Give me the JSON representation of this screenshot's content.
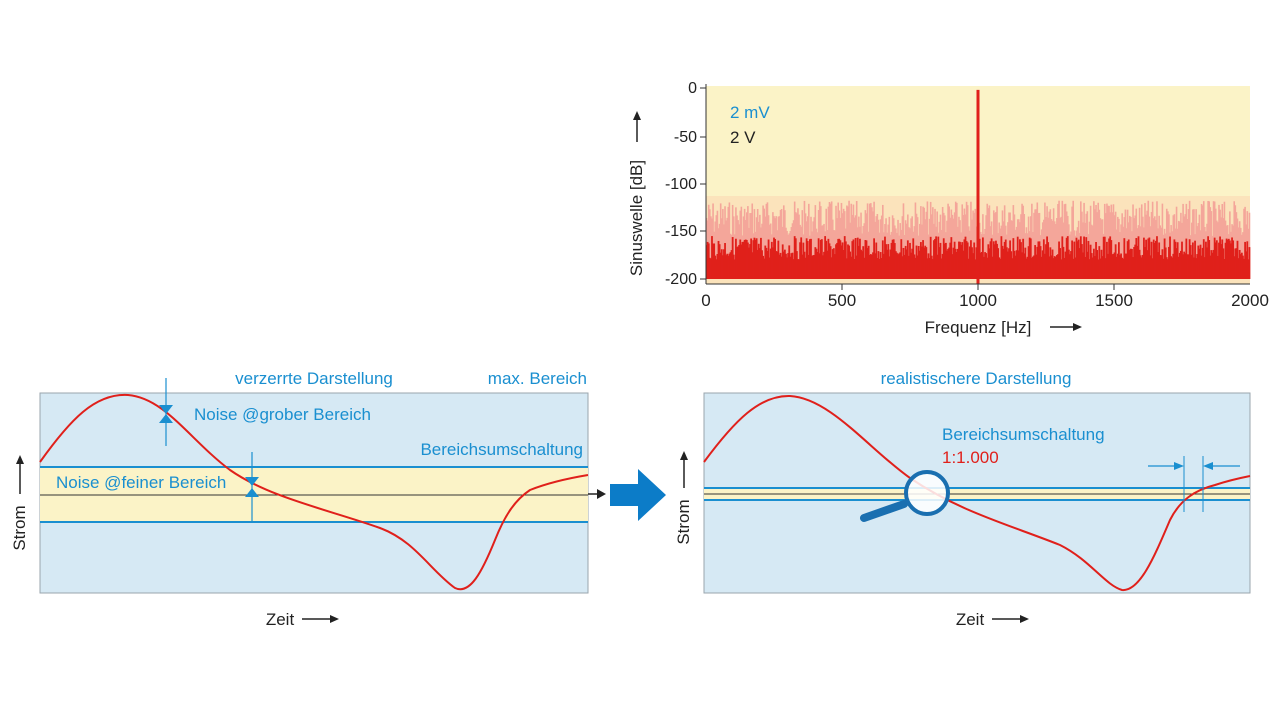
{
  "spectrum": {
    "ylabel": "Sinuswelle [dB]",
    "xlabel": "Frequenz [Hz]",
    "legend_fine": "2 mV",
    "legend_coarse": "2 V",
    "x_ticks": [
      "0",
      "500",
      "1000",
      "1500",
      "2000"
    ],
    "y_ticks": [
      "0",
      "-50",
      "-100",
      "-150",
      "-200"
    ],
    "colors": {
      "fine": "#e0201b",
      "coarse": "#f4a69a",
      "plot_bg": "#fbf3c7",
      "band_bg": "#fbe3bb"
    }
  },
  "chart_data": {
    "type": "bar",
    "xlabel": "Frequenz [Hz]",
    "ylabel": "Sinuswelle [dB]",
    "xlim": [
      0,
      2000
    ],
    "ylim": [
      -200,
      0
    ],
    "series": [
      {
        "name": "2 mV",
        "peak_hz": 1000,
        "peak_db": -2,
        "noise_floor_db": [
          -200,
          -155
        ]
      },
      {
        "name": "2 V",
        "peak_hz": 1000,
        "peak_db": -2,
        "noise_floor_db": [
          -200,
          -118
        ]
      }
    ]
  },
  "left_panel": {
    "title": "verzerrte Darstellung",
    "max_label": "max. Bereich",
    "noise_coarse": "Noise @grober Bereich",
    "range_switch": "Bereichsumschaltung",
    "noise_fine": "Noise @feiner Bereich",
    "ylabel": "Strom",
    "xlabel": "Zeit"
  },
  "right_panel": {
    "title": "realistischere Darstellung",
    "range_switch": "Bereichsumschaltung",
    "ratio": "1:1.000",
    "ylabel": "Strom",
    "xlabel": "Zeit"
  },
  "colors": {
    "panel_bg": "#d6e9f4",
    "panel_border": "#9aa5ad",
    "band_bg": "#fbf3c7",
    "line_blue": "#1a8fd0",
    "curve_red": "#e0201b",
    "arrow_blue": "#0c7cc8"
  }
}
